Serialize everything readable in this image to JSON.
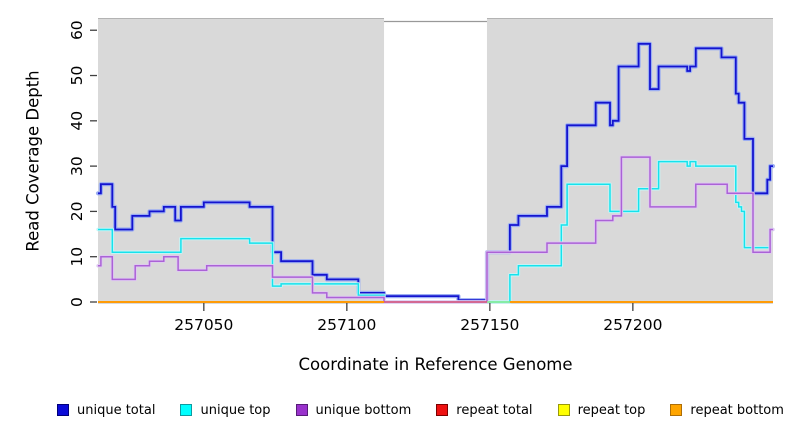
{
  "chart_data": {
    "type": "line",
    "subtype": "step-coverage-plot",
    "title": "",
    "xlabel": "Coordinate in Reference Genome",
    "ylabel": "Read Coverage Depth",
    "xlim": [
      257013,
      257249
    ],
    "ylim": [
      0,
      62.7
    ],
    "grid": false,
    "plot_background": "#d9d9d9",
    "x_ticks": [
      {
        "value": 257050,
        "label": "257050"
      },
      {
        "value": 257100,
        "label": "257100"
      },
      {
        "value": 257150,
        "label": "257150"
      },
      {
        "value": 257200,
        "label": "257200"
      }
    ],
    "y_ticks": [
      {
        "value": 0,
        "label": "0"
      },
      {
        "value": 10,
        "label": "10"
      },
      {
        "value": 20,
        "label": "20"
      },
      {
        "value": 30,
        "label": "30"
      },
      {
        "value": 40,
        "label": "40"
      },
      {
        "value": 50,
        "label": "50"
      },
      {
        "value": 60,
        "label": "60"
      }
    ],
    "gap_region": {
      "start": 257113,
      "end": 257149,
      "fill": "#ffffff",
      "note": "white band with gray top border interrupting shaded plot background"
    },
    "series": [
      {
        "name": "unique total",
        "color": "#1414cf",
        "halo": "#9caef2",
        "width": 1.8,
        "halo_width": 4.2,
        "steps": [
          [
            257013,
            24
          ],
          [
            257014,
            26
          ],
          [
            257018,
            21
          ],
          [
            257019,
            16
          ],
          [
            257025,
            19
          ],
          [
            257031,
            20
          ],
          [
            257036,
            21
          ],
          [
            257040,
            18
          ],
          [
            257042,
            21
          ],
          [
            257050,
            22
          ],
          [
            257066,
            21
          ],
          [
            257074,
            11
          ],
          [
            257077,
            9
          ],
          [
            257088,
            6
          ],
          [
            257093,
            5
          ],
          [
            257104,
            2
          ],
          [
            257113,
            1.3
          ],
          [
            257139,
            0.4
          ],
          [
            257149,
            11
          ],
          [
            257157,
            17
          ],
          [
            257160,
            19
          ],
          [
            257170,
            21
          ],
          [
            257175,
            30
          ],
          [
            257177,
            39
          ],
          [
            257187,
            44
          ],
          [
            257192,
            39
          ],
          [
            257193,
            40
          ],
          [
            257195,
            52
          ],
          [
            257202,
            57
          ],
          [
            257206,
            47
          ],
          [
            257209,
            52
          ],
          [
            257219,
            51
          ],
          [
            257220,
            52
          ],
          [
            257222,
            56
          ],
          [
            257231,
            54
          ],
          [
            257236,
            46
          ],
          [
            257237,
            44
          ],
          [
            257239,
            36
          ],
          [
            257242,
            24
          ],
          [
            257247,
            27
          ],
          [
            257248,
            30
          ]
        ],
        "xend": 257249
      },
      {
        "name": "unique top",
        "color": "#16e2ec",
        "halo": "#c4f6f8",
        "width": 1.5,
        "halo_width": 3.4,
        "steps": [
          [
            257013,
            16
          ],
          [
            257018,
            11
          ],
          [
            257042,
            14
          ],
          [
            257066,
            13
          ],
          [
            257074,
            3.5
          ],
          [
            257077,
            4
          ],
          [
            257104,
            1.5
          ],
          [
            257113,
            0
          ],
          [
            257157,
            6
          ],
          [
            257160,
            8
          ],
          [
            257175,
            17
          ],
          [
            257177,
            26
          ],
          [
            257192,
            20
          ],
          [
            257202,
            25
          ],
          [
            257209,
            31
          ],
          [
            257219,
            30
          ],
          [
            257220,
            31
          ],
          [
            257222,
            30
          ],
          [
            257236,
            22
          ],
          [
            257237,
            21
          ],
          [
            257238,
            20
          ],
          [
            257239,
            12
          ],
          [
            257248,
            16
          ]
        ],
        "xend": 257249
      },
      {
        "name": "unique bottom",
        "color": "#ab62d6",
        "halo": "#dfc9f1",
        "width": 1.5,
        "halo_width": 3.4,
        "steps": [
          [
            257013,
            8
          ],
          [
            257014,
            10
          ],
          [
            257018,
            5
          ],
          [
            257026,
            8
          ],
          [
            257031,
            9
          ],
          [
            257036,
            10
          ],
          [
            257041,
            7
          ],
          [
            257051,
            8
          ],
          [
            257074,
            5.5
          ],
          [
            257088,
            2
          ],
          [
            257093,
            1
          ],
          [
            257113,
            0
          ],
          [
            257149,
            11
          ],
          [
            257170,
            13
          ],
          [
            257187,
            18
          ],
          [
            257193,
            19
          ],
          [
            257196,
            32
          ],
          [
            257206,
            21
          ],
          [
            257222,
            26
          ],
          [
            257233,
            24
          ],
          [
            257242,
            11
          ],
          [
            257248,
            16
          ]
        ],
        "xend": 257249
      },
      {
        "name": "repeat total",
        "color": "#dc4f63",
        "width": 1.3,
        "steps": [
          [
            257113,
            0
          ]
        ],
        "xend": 257149,
        "note": "value 0 across plot; visible only inside the white gap band"
      },
      {
        "name": "repeat top",
        "color": "#8deb8d",
        "width": 1.6,
        "steps": [
          [
            257149,
            0
          ]
        ],
        "xend": 257157,
        "note": "value 0; appears as short light-green segment just right of gap band"
      },
      {
        "name": "repeat bottom",
        "color": "#ff9b06",
        "width": 2,
        "steps": [
          [
            257013,
            0
          ]
        ],
        "xend": 257113,
        "note": "value 0; orange baseline left of gap band"
      },
      {
        "name": "repeat bottom",
        "color": "#ff9b06",
        "width": 2,
        "steps": [
          [
            257157,
            0
          ]
        ],
        "xend": 257249,
        "note": "value 0; orange baseline right of green segment"
      }
    ],
    "legend": {
      "position": "bottom",
      "entries": [
        {
          "label": "unique total",
          "fill": "#0b0bd8",
          "border": "#00007a"
        },
        {
          "label": "unique top",
          "fill": "#00ffff",
          "border": "#0f9aa0"
        },
        {
          "label": "unique bottom",
          "fill": "#9932cc",
          "border": "#571c78"
        },
        {
          "label": "repeat total",
          "fill": "#ee1111",
          "border": "#7c0000"
        },
        {
          "label": "repeat top",
          "fill": "#ffff00",
          "border": "#99990a"
        },
        {
          "label": "repeat bottom",
          "fill": "#ffa500",
          "border": "#ad6e08"
        }
      ]
    }
  }
}
